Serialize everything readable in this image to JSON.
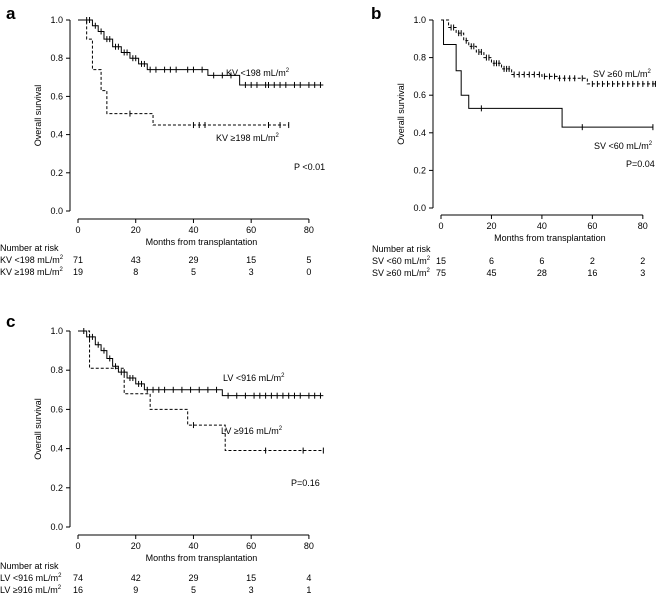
{
  "chart_data": [
    {
      "type": "line",
      "panel_label": "a",
      "xlabel": "Months from transplantation",
      "ylabel": "Overall survival",
      "xlim": [
        0,
        88
      ],
      "ylim": [
        0,
        1.0
      ],
      "x_ticks": [
        "0",
        "20",
        "40",
        "60",
        "80"
      ],
      "y_ticks": [
        "0.0",
        "0.2",
        "0.4",
        "0.6",
        "0.8",
        "1.0"
      ],
      "series": [
        {
          "name": "KV <198 mL/m²",
          "style": "solid",
          "steps": [
            [
              0,
              1.0
            ],
            [
              5,
              0.97
            ],
            [
              7,
              0.94
            ],
            [
              9,
              0.9
            ],
            [
              12,
              0.86
            ],
            [
              15,
              0.83
            ],
            [
              18,
              0.8
            ],
            [
              21,
              0.77
            ],
            [
              24,
              0.74
            ],
            [
              45,
              0.71
            ],
            [
              56,
              0.66
            ],
            [
              85,
              0.66
            ]
          ],
          "censor_x": [
            3,
            4,
            6,
            8,
            10,
            11,
            13,
            14,
            16,
            17,
            19,
            20,
            22,
            23,
            25,
            27,
            30,
            32,
            34,
            38,
            40,
            43,
            47,
            50,
            53,
            58,
            60,
            62,
            65,
            66,
            68,
            70,
            72,
            75,
            77,
            80,
            82,
            84
          ]
        },
        {
          "name": "KV ≥198 mL/m²",
          "style": "dashed",
          "steps": [
            [
              0,
              1.0
            ],
            [
              3,
              0.9
            ],
            [
              5,
              0.74
            ],
            [
              8,
              0.63
            ],
            [
              10,
              0.51
            ],
            [
              26,
              0.45
            ],
            [
              73,
              0.45
            ]
          ],
          "censor_x": [
            18,
            40,
            42,
            44,
            66,
            70,
            73
          ]
        }
      ],
      "annotation": "P <0.01",
      "risk_table": {
        "title": "Number at risk",
        "columns": [
          "0",
          "20",
          "40",
          "60",
          "80"
        ],
        "rows": [
          {
            "label": "KV <198 mL/m²",
            "values": [
              "71",
              "43",
              "29",
              "15",
              "5"
            ]
          },
          {
            "label": "KV ≥198 mL/m²",
            "values": [
              "19",
              "8",
              "5",
              "3",
              "0"
            ]
          }
        ]
      }
    },
    {
      "type": "line",
      "panel_label": "b",
      "xlabel": "Months from transplantation",
      "ylabel": "Overall survival",
      "xlim": [
        0,
        88
      ],
      "ylim": [
        0,
        1.0
      ],
      "x_ticks": [
        "0",
        "20",
        "40",
        "60",
        "80"
      ],
      "y_ticks": [
        "0.0",
        "0.2",
        "0.4",
        "0.6",
        "0.8",
        "1.0"
      ],
      "series": [
        {
          "name": "SV ≥60 mL/m²",
          "style": "dashed",
          "steps": [
            [
              0,
              1.0
            ],
            [
              3,
              0.96
            ],
            [
              6,
              0.93
            ],
            [
              9,
              0.89
            ],
            [
              11,
              0.86
            ],
            [
              14,
              0.83
            ],
            [
              17,
              0.8
            ],
            [
              20,
              0.77
            ],
            [
              24,
              0.74
            ],
            [
              28,
              0.71
            ],
            [
              40,
              0.7
            ],
            [
              46,
              0.69
            ],
            [
              58,
              0.66
            ],
            [
              85,
              0.66
            ]
          ],
          "censor_x": [
            4,
            5,
            7,
            8,
            10,
            12,
            13,
            15,
            16,
            18,
            19,
            21,
            22,
            23,
            25,
            26,
            27,
            29,
            31,
            33,
            35,
            37,
            39,
            41,
            43,
            45,
            47,
            49,
            51,
            53,
            56,
            60,
            62,
            64,
            66,
            68,
            70,
            72,
            74,
            76,
            78,
            80,
            82,
            84,
            85
          ]
        },
        {
          "name": "SV <60 mL/m²",
          "style": "solid",
          "steps": [
            [
              0,
              1.0
            ],
            [
              1,
              0.87
            ],
            [
              6,
              0.73
            ],
            [
              8,
              0.6
            ],
            [
              11,
              0.53
            ],
            [
              48,
              0.43
            ],
            [
              84,
              0.43
            ]
          ],
          "censor_x": [
            16,
            56,
            84
          ]
        }
      ],
      "annotation": "P=0.04",
      "risk_table": {
        "title": "Number at risk",
        "columns": [
          "0",
          "20",
          "40",
          "60",
          "80"
        ],
        "rows": [
          {
            "label": "SV <60 mL/m²",
            "values": [
              "15",
              "6",
              "6",
              "2",
              "2"
            ]
          },
          {
            "label": "SV ≥60 mL/m²",
            "values": [
              "75",
              "45",
              "28",
              "16",
              "3"
            ]
          }
        ]
      }
    },
    {
      "type": "line",
      "panel_label": "c",
      "xlabel": "Months from transplantation",
      "ylabel": "Overall survival",
      "xlim": [
        0,
        88
      ],
      "ylim": [
        0,
        1.0
      ],
      "x_ticks": [
        "0",
        "20",
        "40",
        "60",
        "80"
      ],
      "y_ticks": [
        "0.0",
        "0.2",
        "0.4",
        "0.6",
        "0.8",
        "1.0"
      ],
      "series": [
        {
          "name": "LV <916 mL/m²",
          "style": "solid",
          "steps": [
            [
              0,
              1.0
            ],
            [
              3,
              0.97
            ],
            [
              6,
              0.93
            ],
            [
              8,
              0.9
            ],
            [
              10,
              0.86
            ],
            [
              12,
              0.82
            ],
            [
              14,
              0.79
            ],
            [
              17,
              0.76
            ],
            [
              20,
              0.73
            ],
            [
              23,
              0.7
            ],
            [
              50,
              0.67
            ],
            [
              85,
              0.67
            ]
          ],
          "censor_x": [
            2,
            4,
            5,
            7,
            9,
            11,
            13,
            15,
            16,
            18,
            19,
            21,
            22,
            24,
            26,
            28,
            30,
            33,
            36,
            39,
            42,
            45,
            48,
            52,
            55,
            58,
            61,
            63,
            65,
            67,
            69,
            71,
            73,
            75,
            77,
            80,
            82,
            84
          ]
        },
        {
          "name": "LV ≥916 mL/m²",
          "style": "dashed",
          "steps": [
            [
              0,
              1.0
            ],
            [
              4,
              0.81
            ],
            [
              16,
              0.68
            ],
            [
              25,
              0.6
            ],
            [
              38,
              0.52
            ],
            [
              51,
              0.39
            ],
            [
              85,
              0.39
            ]
          ],
          "censor_x": [
            40,
            65,
            78,
            85
          ]
        }
      ],
      "annotation": "P=0.16",
      "risk_table": {
        "title": "Number at risk",
        "columns": [
          "0",
          "20",
          "40",
          "60",
          "80"
        ],
        "rows": [
          {
            "label": "LV <916 mL/m²",
            "values": [
              "74",
              "42",
              "29",
              "15",
              "4"
            ]
          },
          {
            "label": "LV ≥916 mL/m²",
            "values": [
              "16",
              "9",
              "5",
              "3",
              "1"
            ]
          }
        ]
      }
    }
  ]
}
